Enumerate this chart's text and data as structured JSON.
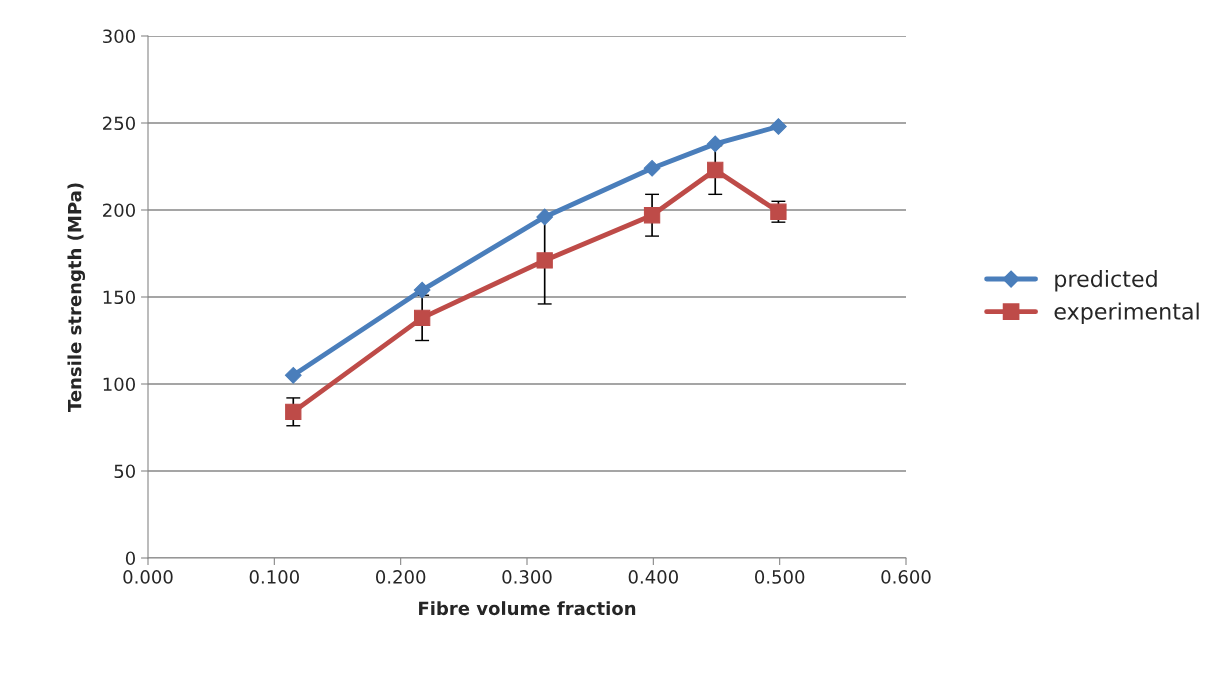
{
  "chart_data": {
    "type": "line",
    "xlabel": "Fibre volume fraction",
    "ylabel": "Tensile strength (MPa)",
    "x": [
      0.115,
      0.217,
      0.314,
      0.399,
      0.449,
      0.499
    ],
    "series": [
      {
        "name": "predicted",
        "color": "#4a7ebb",
        "marker": "diamond",
        "values": [
          105,
          154,
          196,
          224,
          238,
          248
        ]
      },
      {
        "name": "experimental",
        "color": "#be4b48",
        "marker": "square",
        "values": [
          84,
          138,
          171,
          197,
          223,
          199
        ],
        "errors": [
          8,
          13,
          25,
          12,
          14,
          6
        ]
      }
    ],
    "xlim": [
      0,
      0.6
    ],
    "xticks": [
      {
        "value": 0,
        "label": "0.000"
      },
      {
        "value": 0.1,
        "label": "0.100"
      },
      {
        "value": 0.2,
        "label": "0.200"
      },
      {
        "value": 0.3,
        "label": "0.300"
      },
      {
        "value": 0.4,
        "label": "0.400"
      },
      {
        "value": 0.5,
        "label": "0.500"
      },
      {
        "value": 0.6,
        "label": "0.600"
      }
    ],
    "ylim": [
      0,
      300
    ],
    "yticks": [
      0,
      50,
      100,
      150,
      200,
      250,
      300
    ],
    "grid": "y",
    "legend": "right",
    "line_style": "solid"
  }
}
